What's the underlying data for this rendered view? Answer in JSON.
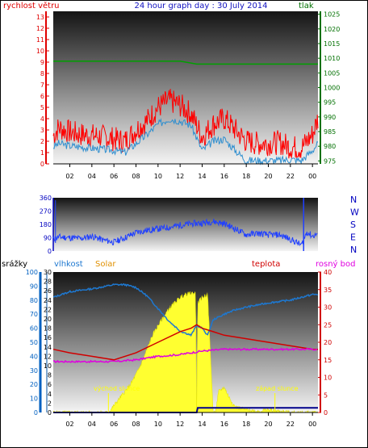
{
  "header": {
    "left": "rychlost větru",
    "center": "24 hour graph day : 30 July 2014",
    "right": "tlak"
  },
  "colors": {
    "wind_axis": "#e00000",
    "pressure_axis": "#007000",
    "wind_gust": "#ff0000",
    "wind_avg": "#2f8fd0",
    "pressure_line": "#00a000",
    "direction_line": "#2040ff",
    "direction_axis": "#0000c0",
    "rain_axis": "#0060c0",
    "humidity_line": "#1e78d0",
    "solar_fill": "#ffff30",
    "temperature_line": "#d00000",
    "dewpoint_line": "#e000e0",
    "rain_line": "#00008b",
    "annotation": "#ffff00"
  },
  "panel3": {
    "labels": {
      "rain": "srážky",
      "humidity": "vlhkost",
      "solar": "Solar",
      "temperature": "teplota",
      "dewpoint": "rosný bod"
    },
    "annotations": {
      "sunrise": "východ slunce",
      "sunset": "západ slunce"
    }
  },
  "chart_data": [
    {
      "type": "line",
      "x_ticks": [
        "02",
        "04",
        "06",
        "08",
        "10",
        "12",
        "14",
        "16",
        "18",
        "20",
        "22",
        "00"
      ],
      "xlim_hours": [
        0.5,
        24.5
      ],
      "left_axis": {
        "ticks": [
          0,
          1,
          2,
          3,
          4,
          5,
          6,
          7,
          8,
          9,
          10,
          11,
          12,
          13
        ],
        "ylim": [
          0,
          13.5
        ]
      },
      "right_axis": {
        "ticks": [
          975,
          980,
          985,
          990,
          995,
          1000,
          1005,
          1010,
          1015,
          1020,
          1025
        ],
        "ylim": [
          974,
          1026
        ]
      },
      "series": [
        {
          "x": [
            0.5,
            1,
            2,
            3,
            4,
            5,
            6,
            7,
            8,
            9,
            10,
            11,
            12,
            13,
            14,
            15,
            16,
            17,
            18,
            19,
            20,
            21,
            22,
            23,
            24,
            24.5
          ],
          "y": [
            2.5,
            3.2,
            2.8,
            2.6,
            2.5,
            2.4,
            2.2,
            2.0,
            3.0,
            3.8,
            5.0,
            5.6,
            5.2,
            4.4,
            2.4,
            3.5,
            4.0,
            3.0,
            2.0,
            1.8,
            1.8,
            1.9,
            1.5,
            1.4,
            2.6,
            4.0
          ]
        },
        {
          "x": [
            0.5,
            1,
            2,
            3,
            4,
            5,
            6,
            7,
            8,
            9,
            10,
            11,
            12,
            13,
            14,
            15,
            16,
            17,
            18,
            19,
            20,
            21,
            22,
            23,
            24,
            24.5
          ],
          "y": [
            1.5,
            1.8,
            1.6,
            1.5,
            1.4,
            1.3,
            1.2,
            1.0,
            1.8,
            2.6,
            3.5,
            4.0,
            3.8,
            3.4,
            1.2,
            2.0,
            2.2,
            1.2,
            0.3,
            0.3,
            0.3,
            0.3,
            0.4,
            0.3,
            1.2,
            1.8
          ]
        },
        {
          "axis": "right",
          "x": [
            0.5,
            12,
            13.5,
            24.5
          ],
          "y": [
            1009,
            1009,
            1008,
            1008
          ]
        }
      ]
    },
    {
      "type": "line",
      "y_ticks": [
        0,
        90,
        180,
        270,
        360
      ],
      "ylim": [
        0,
        360
      ],
      "right_labels": [
        "N",
        "W",
        "S",
        "E",
        "N"
      ],
      "series": [
        {
          "x": [
            0.5,
            1,
            2,
            3,
            4,
            5,
            6,
            7,
            8,
            9,
            10,
            11,
            12,
            13,
            14,
            15,
            16,
            17,
            18,
            19,
            20,
            21,
            22,
            23,
            23.5,
            24,
            24.5
          ],
          "y": [
            80,
            95,
            90,
            85,
            100,
            75,
            60,
            90,
            125,
            140,
            150,
            160,
            175,
            185,
            190,
            200,
            185,
            150,
            110,
            120,
            110,
            110,
            80,
            40,
            130,
            100,
            120
          ]
        }
      ]
    },
    {
      "type": "line",
      "left_axis_rain": {
        "ticks": [
          0,
          2,
          4,
          6,
          8,
          10,
          12,
          14,
          16,
          18,
          20,
          22,
          24,
          26,
          28,
          30
        ],
        "ylim": [
          0,
          30
        ]
      },
      "left_axis_humidity": {
        "ticks": [
          0,
          10,
          20,
          30,
          40,
          50,
          60,
          70,
          80,
          90,
          100
        ],
        "ylim": [
          0,
          100
        ]
      },
      "right_axis": {
        "ticks": [
          0,
          5,
          10,
          15,
          20,
          25,
          30,
          35,
          40
        ],
        "ylim": [
          0,
          40
        ]
      },
      "x_ticks": [
        "02",
        "04",
        "06",
        "08",
        "10",
        "12",
        "14",
        "16",
        "18",
        "20",
        "22",
        "00"
      ],
      "series": [
        {
          "x": [
            0.5,
            2,
            4,
            6,
            7,
            8,
            9,
            10,
            11,
            12,
            13,
            13.5,
            14,
            14.5,
            15,
            16,
            17,
            18,
            20,
            22,
            23,
            24,
            24.5
          ],
          "y": [
            82,
            86,
            88,
            91,
            91,
            89,
            83,
            74,
            65,
            58,
            55,
            62,
            60,
            55,
            66,
            70,
            73,
            75,
            78,
            80,
            82,
            84,
            84
          ]
        },
        {
          "x": [
            0.5,
            2,
            4,
            6,
            8,
            10,
            12,
            13,
            13.5,
            14,
            15,
            16,
            18,
            20,
            22,
            24,
            24.5
          ],
          "y": [
            18,
            17,
            16,
            15,
            17,
            20,
            23,
            24,
            25,
            24,
            23,
            22,
            21,
            20,
            19,
            18,
            18
          ]
        },
        {
          "x": [
            0.5,
            4,
            6,
            8,
            10,
            12,
            13,
            14,
            16,
            18,
            20,
            22,
            24,
            24.5
          ],
          "y": [
            14.5,
            14.5,
            14.5,
            15,
            16,
            16.5,
            17,
            17.5,
            18,
            18,
            18,
            18,
            18,
            18
          ]
        },
        {
          "x": [
            0.5,
            13.5,
            13.6,
            24.5
          ],
          "y": [
            0,
            0,
            1,
            1
          ]
        }
      ],
      "solar": {
        "x": [
          0.5,
          5.5,
          6,
          6.5,
          7,
          7.5,
          8,
          8.5,
          9,
          9.5,
          10,
          10.5,
          11,
          11.5,
          12,
          12.5,
          13,
          13.4,
          13.5,
          13.6,
          14,
          14.5,
          15,
          15.2,
          15.5,
          16,
          16.5,
          17,
          18,
          19,
          20,
          21,
          22,
          24.5
        ],
        "y": [
          0,
          0,
          5,
          10,
          15,
          20,
          27,
          35,
          45,
          55,
          62,
          68,
          74,
          78,
          82,
          84,
          85,
          85,
          0,
          78,
          82,
          84,
          0,
          0,
          15,
          18,
          10,
          4,
          2,
          1,
          2,
          1,
          0,
          0
        ]
      }
    }
  ]
}
